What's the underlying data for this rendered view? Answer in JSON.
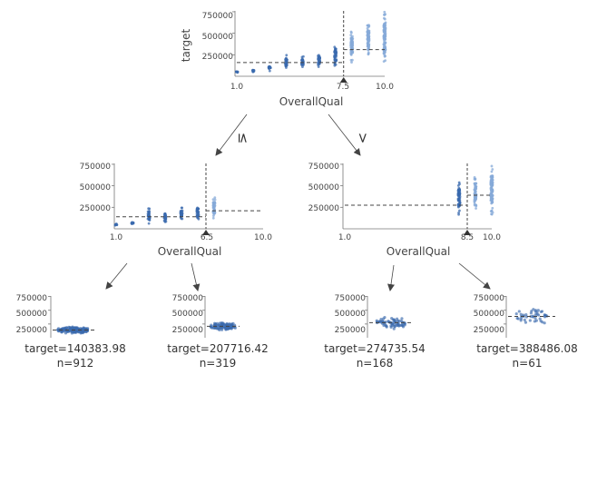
{
  "tree": {
    "target_label": "target",
    "feature": "OverallQual",
    "point_color": "#3a6aad",
    "light_point_color": "#86aad8",
    "line_color": "#444444",
    "edge_labels": {
      "left": "≤",
      "right": ">"
    }
  },
  "chart_data": [
    {
      "type": "scatter",
      "node": "root",
      "xlabel": "OverallQual",
      "ylabel": "target",
      "xlim": [
        1.0,
        10.0
      ],
      "xticks": [
        "1.0",
        "7.5",
        "10.0"
      ],
      "ylim": [
        0,
        760000
      ],
      "yticks": [
        "250000",
        "500000",
        "750000"
      ],
      "split": 7.5,
      "split_label": "7.5",
      "mean_left": 160000,
      "mean_right": 310000,
      "categories": [
        1,
        2,
        3,
        4,
        5,
        6,
        7,
        8,
        9,
        10
      ],
      "ranges": [
        [
          40000,
          60000
        ],
        [
          40000,
          80000
        ],
        [
          60000,
          140000
        ],
        [
          80000,
          250000
        ],
        [
          90000,
          240000
        ],
        [
          100000,
          280000
        ],
        [
          120000,
          380000
        ],
        [
          160000,
          540000
        ],
        [
          220000,
          620000
        ],
        [
          160000,
          760000
        ]
      ]
    },
    {
      "type": "scatter",
      "node": "left",
      "xlabel": "OverallQual",
      "ylabel": "",
      "xlim": [
        1.0,
        10.0
      ],
      "xticks": [
        "1.0",
        "6.5",
        "10.0"
      ],
      "ylim": [
        0,
        760000
      ],
      "yticks": [
        "250000",
        "500000",
        "750000"
      ],
      "split": 6.5,
      "split_label": "6.5",
      "mean_left": 140000,
      "mean_right": 210000,
      "categories": [
        1,
        2,
        3,
        4,
        5,
        6,
        7
      ],
      "ranges": [
        [
          40000,
          60000
        ],
        [
          40000,
          80000
        ],
        [
          60000,
          250000
        ],
        [
          80000,
          210000
        ],
        [
          90000,
          250000
        ],
        [
          100000,
          280000
        ],
        [
          120000,
          380000
        ]
      ]
    },
    {
      "type": "scatter",
      "node": "right",
      "xlabel": "OverallQual",
      "ylabel": "",
      "xlim": [
        1.0,
        10.0
      ],
      "xticks": [
        "1.0",
        "8.5",
        "10.0"
      ],
      "ylim": [
        0,
        760000
      ],
      "yticks": [
        "250000",
        "500000",
        "750000"
      ],
      "split": 8.5,
      "split_label": "8.5",
      "mean_left": 275000,
      "mean_right": 390000,
      "categories": [
        8,
        9,
        10
      ],
      "ranges": [
        [
          160000,
          540000
        ],
        [
          220000,
          620000
        ],
        [
          160000,
          760000
        ]
      ]
    }
  ],
  "leaves": [
    {
      "target_text": "target=140383.98",
      "n_text": "n=912",
      "mean": 140384,
      "spread": 70000
    },
    {
      "target_text": "target=207716.42",
      "n_text": "n=319",
      "mean": 207716,
      "spread": 90000
    },
    {
      "target_text": "target=274735.54",
      "n_text": "n=168",
      "mean": 274736,
      "spread": 130000
    },
    {
      "target_text": "target=388486.08",
      "n_text": "n=61",
      "mean": 388486,
      "spread": 190000
    }
  ],
  "leaf_yticks": [
    "250000",
    "500000",
    "750000"
  ]
}
